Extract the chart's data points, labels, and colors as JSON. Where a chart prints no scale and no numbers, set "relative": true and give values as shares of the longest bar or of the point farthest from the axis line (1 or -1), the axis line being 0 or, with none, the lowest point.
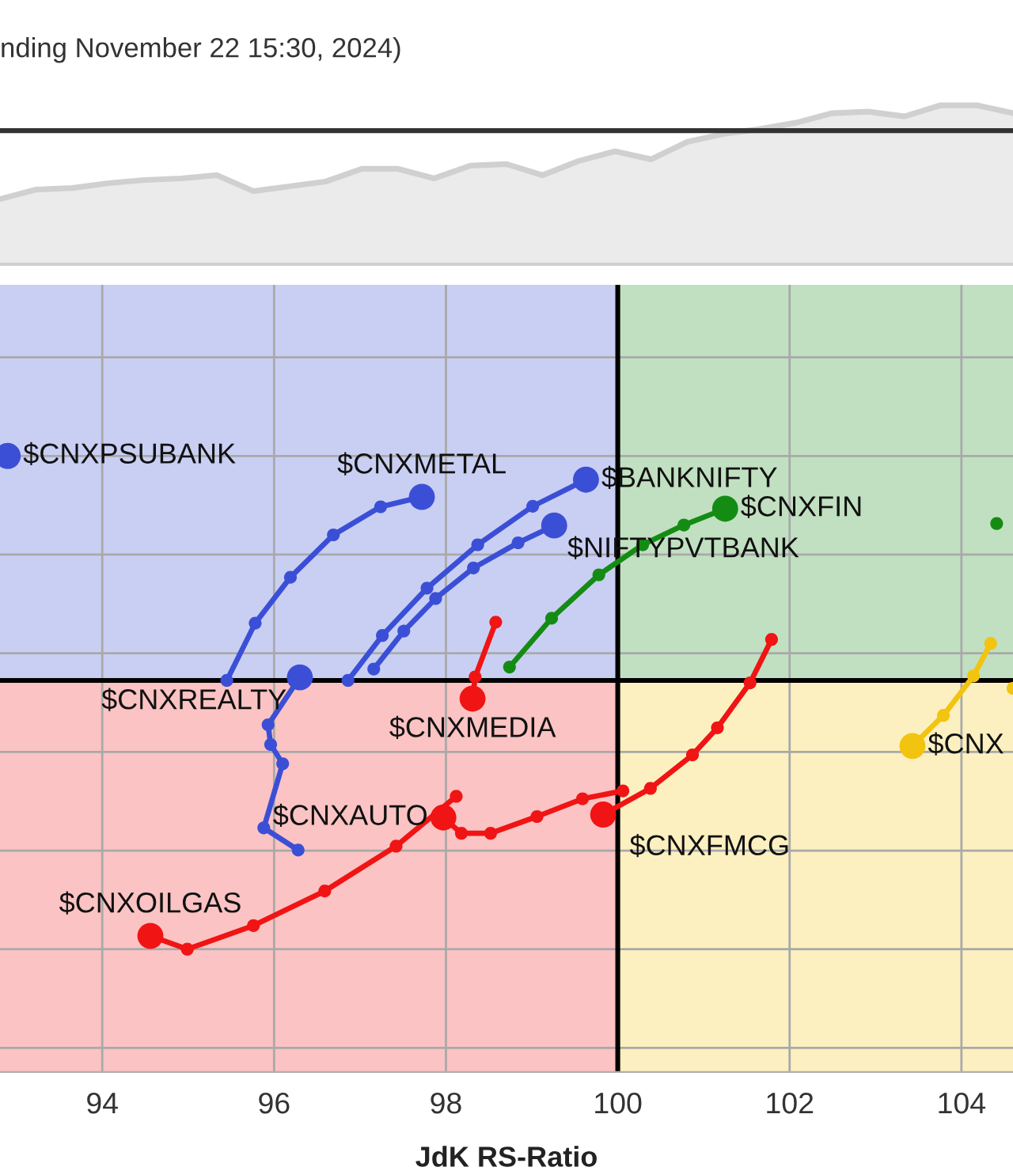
{
  "chart_data": [
    {
      "type": "area",
      "title": "nding November 22 15:30, 2024)",
      "relative": true,
      "tick_labels": false,
      "categories": [
        null,
        null,
        null,
        null,
        null,
        null,
        null,
        null,
        null,
        null,
        null,
        null,
        null,
        null,
        null,
        null,
        null,
        null,
        null,
        null,
        null,
        null,
        null,
        null,
        null,
        null,
        null,
        null,
        null
      ],
      "series": [
        {
          "color": "#d0d0d0",
          "values": [
            0.41,
            0.47,
            0.48,
            0.51,
            0.53,
            0.54,
            0.56,
            0.46,
            0.49,
            0.52,
            0.6,
            0.6,
            0.54,
            0.62,
            0.63,
            0.56,
            0.65,
            0.71,
            0.66,
            0.77,
            0.82,
            0.85,
            0.89,
            0.95,
            0.96,
            0.93,
            1.0,
            1.0,
            0.95
          ]
        }
      ],
      "ref_lines": [
        {
          "axis": "y",
          "value": 0.84,
          "color": "#333333"
        }
      ]
    },
    {
      "type": "line",
      "xlabel": "JdK RS-Ratio",
      "relative": true,
      "tick_labels": "x",
      "grid": true,
      "marker": "circle",
      "xlim": [
        92.81,
        104.6
      ],
      "xticks": [
        94,
        96,
        98,
        100,
        102,
        104
      ],
      "ref_lines": [
        {
          "axis": "x",
          "value": 100,
          "color": "#000000"
        },
        {
          "axis": "y",
          "value": 0.545,
          "color": "#000000"
        }
      ],
      "series": [
        {
          "name": "$CNXPSUBANK",
          "color": "#3b4fd6",
          "x": [
            92.9
          ],
          "values": [
            1.0
          ]
        },
        {
          "name": "$CNXMETAL",
          "color": "#3b4fd6",
          "x": [
            95.45,
            95.78,
            96.19,
            96.69,
            97.24,
            97.72
          ],
          "values": [
            0.545,
            0.661,
            0.754,
            0.84,
            0.897,
            0.917
          ]
        },
        {
          "name": "$CNXREALTY",
          "color": "#3b4fd6",
          "x": [
            96.28,
            95.88,
            96.1,
            95.96,
            95.93,
            96.3
          ],
          "values": [
            0.201,
            0.246,
            0.376,
            0.415,
            0.455,
            0.551
          ]
        },
        {
          "name": "$BANKNIFTY",
          "color": "#3b4fd6",
          "x": [
            96.86,
            97.26,
            97.78,
            98.37,
            99.01,
            99.63
          ],
          "values": [
            0.545,
            0.636,
            0.732,
            0.82,
            0.898,
            0.952
          ]
        },
        {
          "name": "$NIFTYPVTBANK",
          "color": "#3b4fd6",
          "x": [
            97.16,
            97.51,
            97.88,
            98.32,
            98.84,
            99.26
          ],
          "values": [
            0.568,
            0.645,
            0.711,
            0.773,
            0.824,
            0.859
          ]
        },
        {
          "name": "$CNXFIN",
          "color": "#148c14",
          "x": [
            98.74,
            99.23,
            99.78,
            100.29,
            100.77,
            101.25
          ],
          "values": [
            0.572,
            0.671,
            0.759,
            0.82,
            0.86,
            0.893
          ]
        },
        {
          "color": "#148c14",
          "x": [
            104.41
          ],
          "values": [
            0.863
          ]
        },
        {
          "name": "$CNX",
          "color": "#f2c40f",
          "x": [
            104.34,
            104.14,
            103.79,
            103.43
          ],
          "values": [
            0.62,
            0.554,
            0.474,
            0.412
          ]
        },
        {
          "color": "#f2c40f",
          "x": [
            104.6
          ],
          "values": [
            0.529
          ]
        },
        {
          "name": "$CNXMEDIA",
          "color": "#f01414",
          "x": [
            98.58,
            98.34,
            98.31
          ],
          "values": [
            0.663,
            0.552,
            0.508
          ]
        },
        {
          "name": "$CNXFMCG",
          "color": "#f01414",
          "x": [
            101.79,
            101.54,
            101.16,
            100.87,
            100.38,
            99.83
          ],
          "values": [
            0.628,
            0.54,
            0.449,
            0.394,
            0.326,
            0.273
          ]
        },
        {
          "name": "$CNXAUTO",
          "color": "#f01414",
          "x": [
            100.06,
            99.59,
            99.06,
            98.52,
            98.18,
            97.97
          ],
          "values": [
            0.321,
            0.305,
            0.269,
            0.235,
            0.235,
            0.267
          ]
        },
        {
          "name": "$CNXOILGAS",
          "color": "#f01414",
          "x": [
            98.12,
            97.42,
            96.59,
            95.76,
            94.99,
            94.56
          ],
          "values": [
            0.31,
            0.209,
            0.118,
            0.048,
            0.0,
            0.027
          ]
        }
      ]
    }
  ]
}
